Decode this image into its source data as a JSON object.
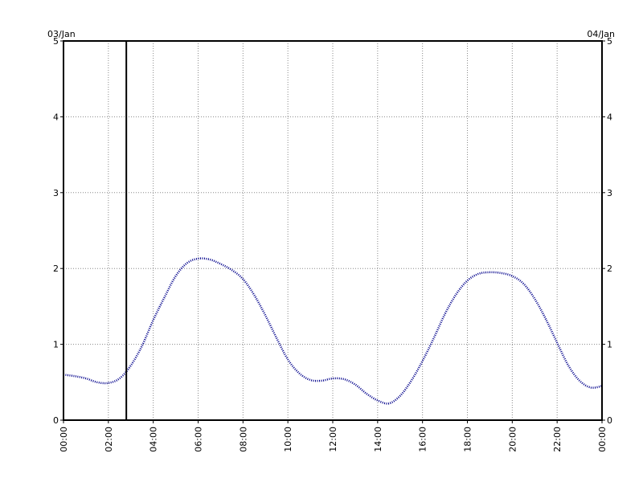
{
  "chart_data": {
    "type": "line",
    "title": "",
    "xlabel": "",
    "ylabel": "",
    "start_date_label": "03/Jan",
    "end_date_label": "04/Jan",
    "xlim": [
      "00:00",
      "00:00"
    ],
    "ylim": [
      0,
      5
    ],
    "x_ticks": [
      "00:00",
      "02:00",
      "04:00",
      "06:00",
      "08:00",
      "10:00",
      "12:00",
      "14:00",
      "16:00",
      "18:00",
      "20:00",
      "22:00",
      "00:00"
    ],
    "y_ticks": [
      "0",
      "1",
      "2",
      "3",
      "4",
      "5"
    ],
    "grid": true,
    "marker_time": "02:48",
    "series_color": "#00008b",
    "series": [
      {
        "x": [
          "00:00",
          "00:30",
          "01:00",
          "01:30",
          "02:00",
          "02:30",
          "03:00",
          "03:30",
          "04:00",
          "04:30",
          "05:00",
          "05:30",
          "06:00",
          "06:30",
          "07:00",
          "07:30",
          "08:00",
          "08:30",
          "09:00",
          "09:30",
          "10:00",
          "10:30",
          "11:00",
          "11:30",
          "12:00",
          "12:30",
          "13:00",
          "13:30",
          "14:00",
          "14:30",
          "15:00",
          "15:30",
          "16:00",
          "16:30",
          "17:00",
          "17:30",
          "18:00",
          "18:30",
          "19:00",
          "19:30",
          "20:00",
          "20:30",
          "21:00",
          "21:30",
          "22:00",
          "22:30",
          "23:00",
          "23:30",
          "24:00"
        ],
        "y": [
          0.6,
          0.58,
          0.55,
          0.5,
          0.49,
          0.55,
          0.72,
          0.98,
          1.32,
          1.62,
          1.9,
          2.07,
          2.13,
          2.12,
          2.06,
          1.98,
          1.86,
          1.65,
          1.38,
          1.08,
          0.8,
          0.62,
          0.53,
          0.52,
          0.55,
          0.54,
          0.47,
          0.35,
          0.26,
          0.22,
          0.32,
          0.52,
          0.78,
          1.08,
          1.4,
          1.66,
          1.84,
          1.93,
          1.95,
          1.94,
          1.9,
          1.8,
          1.6,
          1.33,
          1.02,
          0.72,
          0.52,
          0.43,
          0.45
        ]
      }
    ]
  }
}
